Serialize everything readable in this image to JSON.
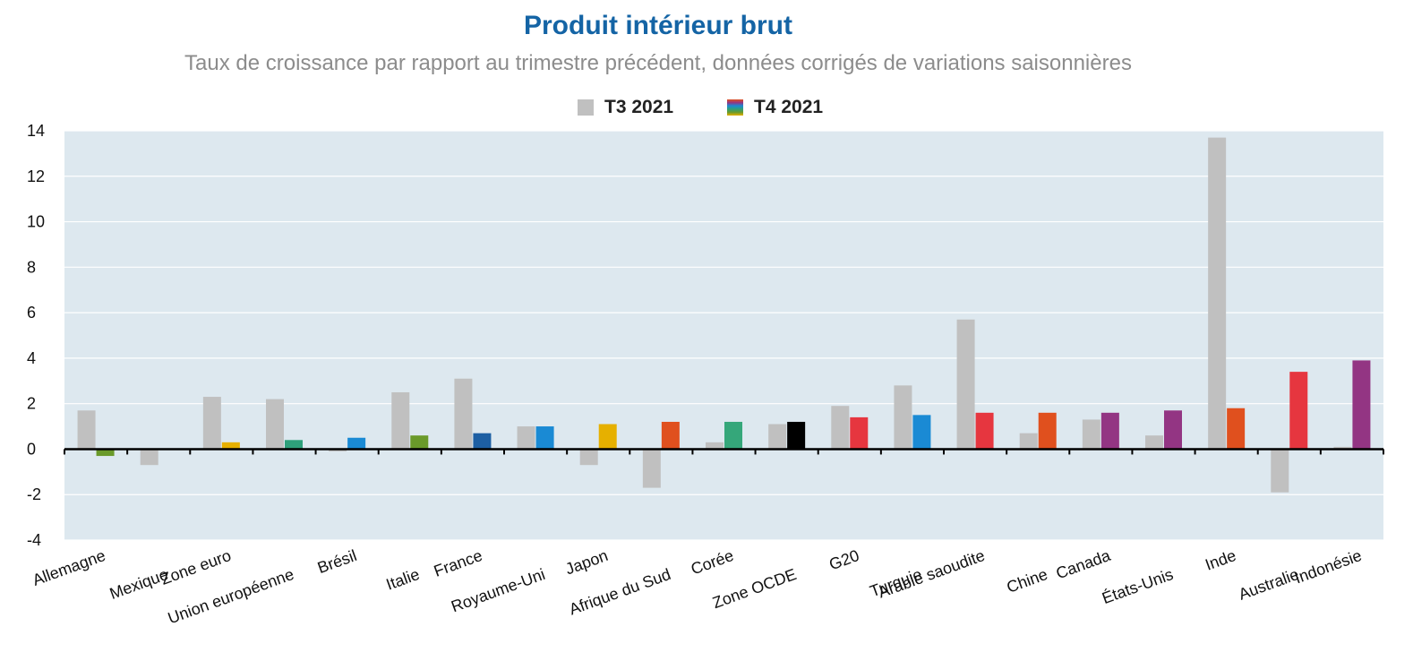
{
  "title": "Produit intérieur brut",
  "subtitle": "Taux de croissance par rapport au trimestre précédent, données corrigés de variations saisonnières",
  "legend": {
    "t3_label": "T3 2021",
    "t4_label": "T4 2021"
  },
  "colors": {
    "plot_background": "#dde8ef",
    "t3": "#c0c0c0"
  },
  "chart_data": {
    "type": "bar",
    "title": "Produit intérieur brut",
    "subtitle": "Taux de croissance par rapport au trimestre précédent, données corrigés de variations saisonnières",
    "xlabel": "",
    "ylabel": "",
    "ylim": [
      -4,
      14
    ],
    "yticks": [
      -4,
      -2,
      0,
      2,
      4,
      6,
      8,
      10,
      12,
      14
    ],
    "grid": true,
    "legend_position": "top-center",
    "categories": [
      "Allemagne",
      "Mexique",
      "Zone euro",
      "Union européenne",
      "Brésil",
      "Italie",
      "France",
      "Royaume-Uni",
      "Japon",
      "Afrique du Sud",
      "Corée",
      "Zone OCDE",
      "G20",
      "Turquie",
      "Arabie saoudite",
      "Chine",
      "Canada",
      "États-Unis",
      "Inde",
      "Australie",
      "Indonésie"
    ],
    "series": [
      {
        "name": "T3 2021",
        "color": "#c0c0c0",
        "values": [
          1.7,
          -0.7,
          2.3,
          2.2,
          -0.1,
          2.5,
          3.1,
          1.0,
          -0.7,
          -1.7,
          0.3,
          1.1,
          1.9,
          2.8,
          5.7,
          0.7,
          1.3,
          0.6,
          13.7,
          -1.9,
          0.1
        ]
      },
      {
        "name": "T4 2021",
        "colors": [
          "#6a9a2a",
          "#888888",
          "#e6b000",
          "#2ea07a",
          "#1a8ad4",
          "#6a9a2a",
          "#1d5fa3",
          "#1a8ad4",
          "#e6b000",
          "#e0501e",
          "#35a77a",
          "#000000",
          "#e6363f",
          "#1a8ad4",
          "#e6363f",
          "#e0501e",
          "#933583",
          "#933583",
          "#e0501e",
          "#e6363f",
          "#933583"
        ],
        "values": [
          -0.3,
          0.0,
          0.3,
          0.4,
          0.5,
          0.6,
          0.7,
          1.0,
          1.1,
          1.2,
          1.2,
          1.2,
          1.4,
          1.5,
          1.6,
          1.6,
          1.6,
          1.7,
          1.8,
          3.4,
          3.9
        ]
      }
    ]
  }
}
